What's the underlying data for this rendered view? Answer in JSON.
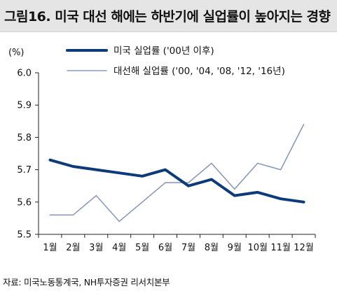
{
  "title": "그림16. 미국 대선 해에는 하반기에 실업률이 높아지는 경향",
  "source": "자료: 미국노동통계국, NH투자증권 리서치본부",
  "chart_data": {
    "type": "line",
    "unit_label": "(%)",
    "categories": [
      "1월",
      "2월",
      "3월",
      "4월",
      "5월",
      "6월",
      "7월",
      "8월",
      "9월",
      "10월",
      "11월",
      "12월"
    ],
    "ylim": [
      5.5,
      6.0
    ],
    "yticks": [
      "6.0",
      "5.9",
      "5.8",
      "5.7",
      "5.6",
      "5.5"
    ],
    "ytick_values": [
      6.0,
      5.9,
      5.8,
      5.7,
      5.6,
      5.5
    ],
    "legend_position": "top",
    "series": [
      {
        "name": "미국 실업률 ('00년 이후)",
        "color": "#0d3b7a",
        "style": "thick",
        "values": [
          5.73,
          5.71,
          5.7,
          5.69,
          5.68,
          5.7,
          5.65,
          5.67,
          5.62,
          5.63,
          5.61,
          5.6
        ]
      },
      {
        "name": "대선해 실업률 ('00, '04, '08, '12, '16년)",
        "color": "#8a9bb9",
        "style": "thin",
        "values": [
          5.56,
          5.56,
          5.62,
          5.54,
          5.6,
          5.66,
          5.66,
          5.72,
          5.64,
          5.72,
          5.7,
          5.84
        ]
      }
    ]
  }
}
